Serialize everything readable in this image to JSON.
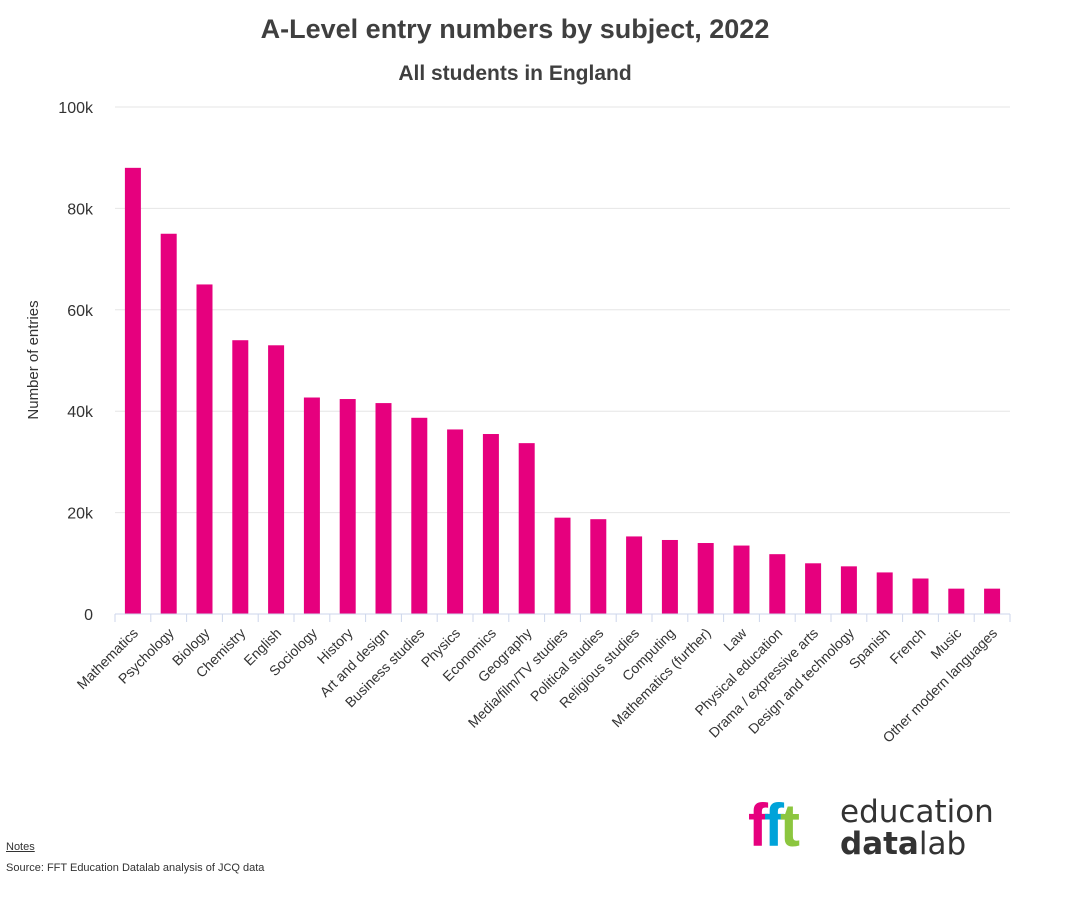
{
  "chart_data": {
    "type": "bar",
    "title": "A-Level entry numbers by subject, 2022",
    "subtitle": "All students in England",
    "xlabel": "",
    "ylabel": "Number of entries",
    "ylim": [
      0,
      100000
    ],
    "yticks": [
      {
        "value": 0,
        "label": "0"
      },
      {
        "value": 20000,
        "label": "20k"
      },
      {
        "value": 40000,
        "label": "40k"
      },
      {
        "value": 60000,
        "label": "60k"
      },
      {
        "value": 80000,
        "label": "80k"
      },
      {
        "value": 100000,
        "label": "100k"
      }
    ],
    "grid": true,
    "legend": "none",
    "bar_color": "#e6007e",
    "categories": [
      "Mathematics",
      "Psychology",
      "Biology",
      "Chemistry",
      "English",
      "Sociology",
      "History",
      "Art and design",
      "Business studies",
      "Physics",
      "Economics",
      "Geography",
      "Media/film/TV studies",
      "Political studies",
      "Religious studies",
      "Computing",
      "Mathematics (further)",
      "Law",
      "Physical education",
      "Drama / expressive arts",
      "Design and technology",
      "Spanish",
      "French",
      "Music",
      "Other modern languages"
    ],
    "values": [
      88000,
      75000,
      65000,
      54000,
      53000,
      42700,
      42400,
      41600,
      38700,
      36400,
      35500,
      33700,
      19000,
      18700,
      15300,
      14600,
      14000,
      13500,
      11800,
      10000,
      9400,
      8200,
      7000,
      5000,
      5000
    ]
  },
  "footer": {
    "notes_label": "Notes",
    "source_text": "Source: FFT Education Datalab analysis of JCQ data"
  },
  "logo": {
    "mark": "fft",
    "word_top": "education",
    "word_bottom_bold": "data",
    "word_bottom_rest": "lab",
    "colors": [
      "#e6007e",
      "#00a3d9",
      "#8cc63f"
    ]
  }
}
